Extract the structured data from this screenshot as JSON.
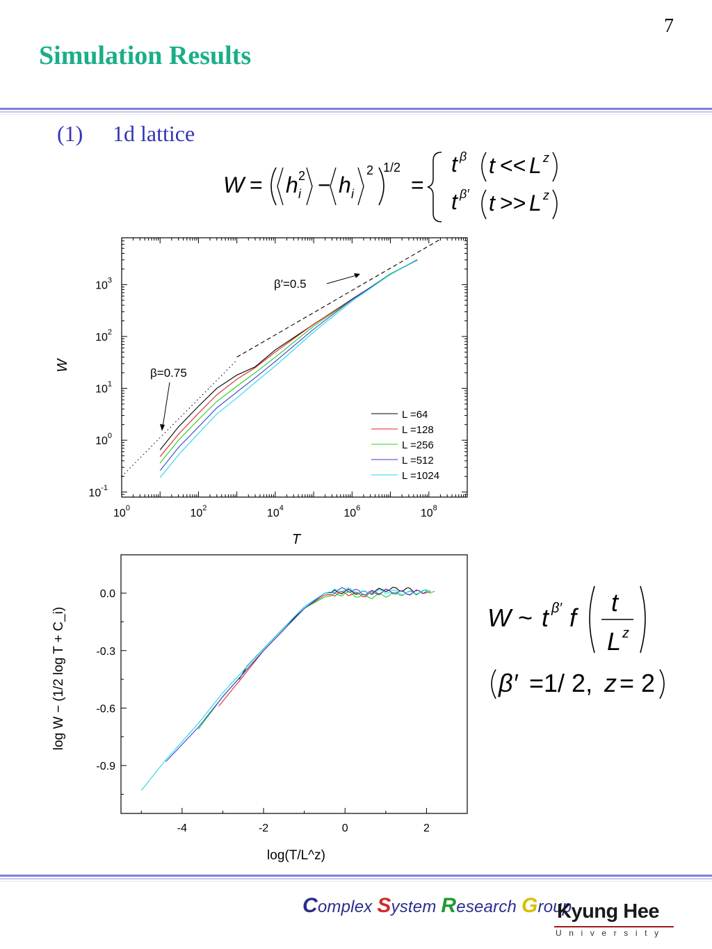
{
  "page": {
    "number": "7",
    "title": "Simulation Results"
  },
  "section": {
    "number": "(1)",
    "label": "1d lattice"
  },
  "formula_top": {
    "lhs": "W = (⟨h_i²⟩ − ⟨h_i⟩²)^1/2 =",
    "case1": "t^β (t << L^z)",
    "case2": "t^β′ (t >> L^z)"
  },
  "formula_right": {
    "scaling": "W ~ t^β′ f(t / L^z)",
    "params": "(β′ = 1/2, z = 2)"
  },
  "colors": {
    "title": "#1aae88",
    "heading": "#3434b4",
    "L64": "#000000",
    "L128": "#e02020",
    "L256": "#20d020",
    "L512": "#3a3ad8",
    "L1024": "#20d8e8"
  },
  "chart_data": [
    {
      "type": "line",
      "title": "",
      "xlabel": "T",
      "ylabel": "W",
      "xscale": "log",
      "yscale": "log",
      "xlim": [
        1,
        1000000000
      ],
      "ylim": [
        0.08,
        8000
      ],
      "xticks": [
        "10^0",
        "10^2",
        "10^4",
        "10^6",
        "10^8"
      ],
      "yticks": [
        "10^-1",
        "10^0",
        "10^1",
        "10^2",
        "10^3"
      ],
      "legend_position": "lower-right",
      "annotations": [
        {
          "text": "β′=0.5",
          "line": "dashed",
          "points": [
            [
              1000,
              40
            ],
            [
              200000000,
              7500
            ]
          ]
        },
        {
          "text": "β=0.75",
          "line": "dotted",
          "points": [
            [
              1,
              0.2
            ],
            [
              1000,
              35
            ]
          ]
        }
      ],
      "series": [
        {
          "name": "L =64",
          "points": [
            [
              10,
              0.65
            ],
            [
              30,
              1.8
            ],
            [
              100,
              4.5
            ],
            [
              300,
              10
            ],
            [
              1000,
              18
            ],
            [
              3000,
              26
            ],
            [
              10000,
              55
            ],
            [
              100000,
              170
            ],
            [
              1000000,
              520
            ],
            [
              10000000,
              1600
            ],
            [
              50000000,
              3000
            ]
          ]
        },
        {
          "name": "L =128",
          "points": [
            [
              10,
              0.48
            ],
            [
              30,
              1.3
            ],
            [
              100,
              3.3
            ],
            [
              300,
              7.5
            ],
            [
              1000,
              15
            ],
            [
              3000,
              25
            ],
            [
              10000,
              50
            ],
            [
              100000,
              170
            ],
            [
              1000000,
              520
            ],
            [
              10000000,
              1600
            ],
            [
              50000000,
              3000
            ]
          ]
        },
        {
          "name": "L =256",
          "points": [
            [
              10,
              0.36
            ],
            [
              30,
              1.0
            ],
            [
              100,
              2.5
            ],
            [
              300,
              5.6
            ],
            [
              1000,
              11
            ],
            [
              3000,
              20
            ],
            [
              10000,
              40
            ],
            [
              100000,
              160
            ],
            [
              1000000,
              510
            ],
            [
              10000000,
              1600
            ],
            [
              50000000,
              3000
            ]
          ]
        },
        {
          "name": "L =512",
          "points": [
            [
              10,
              0.26
            ],
            [
              30,
              0.72
            ],
            [
              100,
              1.8
            ],
            [
              300,
              4.2
            ],
            [
              1000,
              8.5
            ],
            [
              3000,
              16
            ],
            [
              10000,
              33
            ],
            [
              100000,
              140
            ],
            [
              1000000,
              500
            ],
            [
              10000000,
              1600
            ],
            [
              50000000,
              3000
            ]
          ]
        },
        {
          "name": "L =1024",
          "points": [
            [
              10,
              0.19
            ],
            [
              30,
              0.52
            ],
            [
              100,
              1.35
            ],
            [
              300,
              3.2
            ],
            [
              1000,
              6.5
            ],
            [
              3000,
              13
            ],
            [
              10000,
              27
            ],
            [
              100000,
              120
            ],
            [
              1000000,
              480
            ],
            [
              10000000,
              1600
            ],
            [
              50000000,
              3000
            ]
          ]
        }
      ]
    },
    {
      "type": "line",
      "title": "",
      "xlabel": "log(T/L^z)",
      "ylabel": "log W − (1/2 log T + C_i)",
      "xlim": [
        -5.5,
        3
      ],
      "ylim": [
        -1.15,
        0.2
      ],
      "xticks": [
        "-4",
        "-2",
        "0",
        "2"
      ],
      "yticks": [
        "0.0",
        "-0.3",
        "-0.6",
        "-0.9"
      ],
      "series": [
        {
          "name": "L =64",
          "points": [
            [
              -2.6,
              -0.45
            ],
            [
              -2.4,
              -0.38
            ],
            [
              -2.0,
              -0.29
            ],
            [
              -1.5,
              -0.18
            ],
            [
              -1.0,
              -0.08
            ],
            [
              -0.5,
              0.0
            ],
            [
              0.0,
              0.01
            ],
            [
              0.5,
              0.0
            ],
            [
              1.0,
              0.02
            ],
            [
              1.5,
              0.02
            ],
            [
              1.8,
              0.0
            ]
          ]
        },
        {
          "name": "L =128",
          "points": [
            [
              -3.1,
              -0.59
            ],
            [
              -2.6,
              -0.46
            ],
            [
              -2.0,
              -0.3
            ],
            [
              -1.5,
              -0.19
            ],
            [
              -1.0,
              -0.08
            ],
            [
              -0.5,
              -0.01
            ],
            [
              0.0,
              0.0
            ],
            [
              0.5,
              -0.01
            ],
            [
              1.0,
              0.01
            ],
            [
              1.5,
              0.0
            ],
            [
              2.1,
              0.01
            ]
          ]
        },
        {
          "name": "L =256",
          "points": [
            [
              -3.6,
              -0.71
            ],
            [
              -3.0,
              -0.54
            ],
            [
              -2.0,
              -0.3
            ],
            [
              -1.5,
              -0.19
            ],
            [
              -1.0,
              -0.08
            ],
            [
              -0.5,
              -0.02
            ],
            [
              0.0,
              0.0
            ],
            [
              0.5,
              -0.02
            ],
            [
              1.0,
              -0.01
            ],
            [
              1.5,
              0.0
            ],
            [
              2.2,
              0.01
            ]
          ]
        },
        {
          "name": "L =512",
          "points": [
            [
              -4.4,
              -0.88
            ],
            [
              -3.6,
              -0.7
            ],
            [
              -3.0,
              -0.54
            ],
            [
              -2.0,
              -0.3
            ],
            [
              -1.0,
              -0.08
            ],
            [
              -0.5,
              0.0
            ],
            [
              0.0,
              0.02
            ],
            [
              0.5,
              0.0
            ],
            [
              1.0,
              0.01
            ],
            [
              1.5,
              0.0
            ],
            [
              2.0,
              0.01
            ]
          ]
        },
        {
          "name": "L =1024",
          "points": [
            [
              -5.0,
              -1.03
            ],
            [
              -4.4,
              -0.87
            ],
            [
              -3.6,
              -0.68
            ],
            [
              -3.0,
              -0.52
            ],
            [
              -2.0,
              -0.29
            ],
            [
              -1.0,
              -0.07
            ],
            [
              -0.5,
              0.0
            ],
            [
              0.0,
              0.02
            ],
            [
              0.5,
              0.0
            ],
            [
              1.0,
              0.01
            ],
            [
              1.5,
              0.0
            ],
            [
              2.1,
              0.01
            ]
          ]
        }
      ]
    }
  ],
  "footer": {
    "group_caps": [
      "C",
      "S",
      "R",
      "G"
    ],
    "group_rest": [
      "omplex ",
      "ystem ",
      "esearch ",
      "roup"
    ],
    "logo_name": "Kyung Hee",
    "logo_sub": "University"
  }
}
